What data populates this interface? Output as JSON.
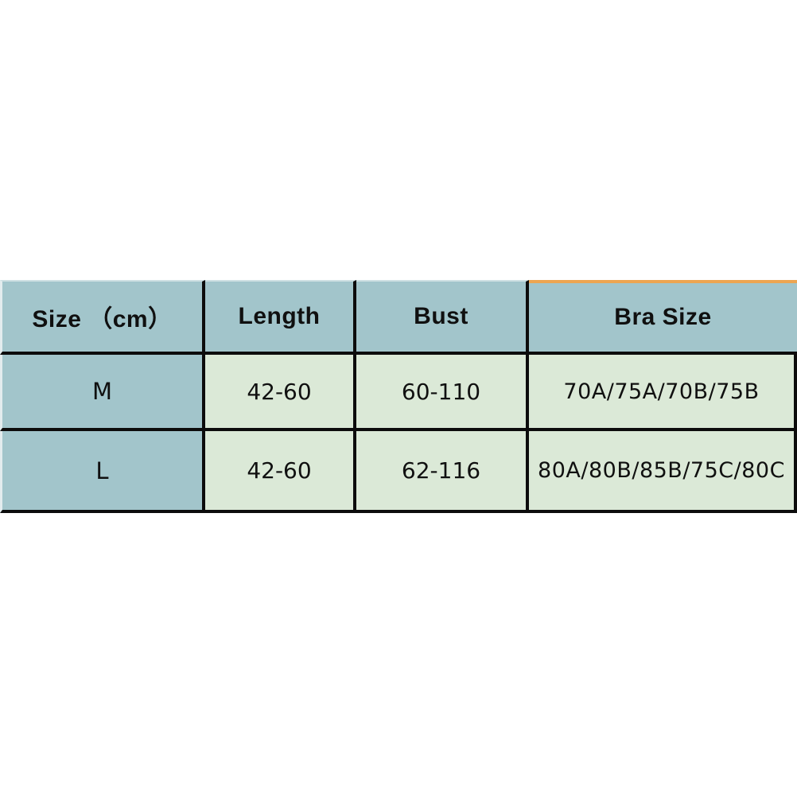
{
  "table": {
    "columns": [
      {
        "label": "Size （cm）"
      },
      {
        "label": "Length"
      },
      {
        "label": "Bust"
      },
      {
        "label": "Bra Size"
      }
    ],
    "rows": [
      {
        "size": "M",
        "length": "42-60",
        "bust": "60-110",
        "bra_size": "70A/75A/70B/75B"
      },
      {
        "size": "L",
        "length": "42-60",
        "bust": "62-116",
        "bra_size": "80A/80B/85B/75C/80C"
      }
    ],
    "colors": {
      "header_bg": "#a2c5cb",
      "data_bg": "#dbe9d7",
      "line": "#0c0c0c",
      "accent": "#eda551",
      "text": "#101010"
    }
  }
}
